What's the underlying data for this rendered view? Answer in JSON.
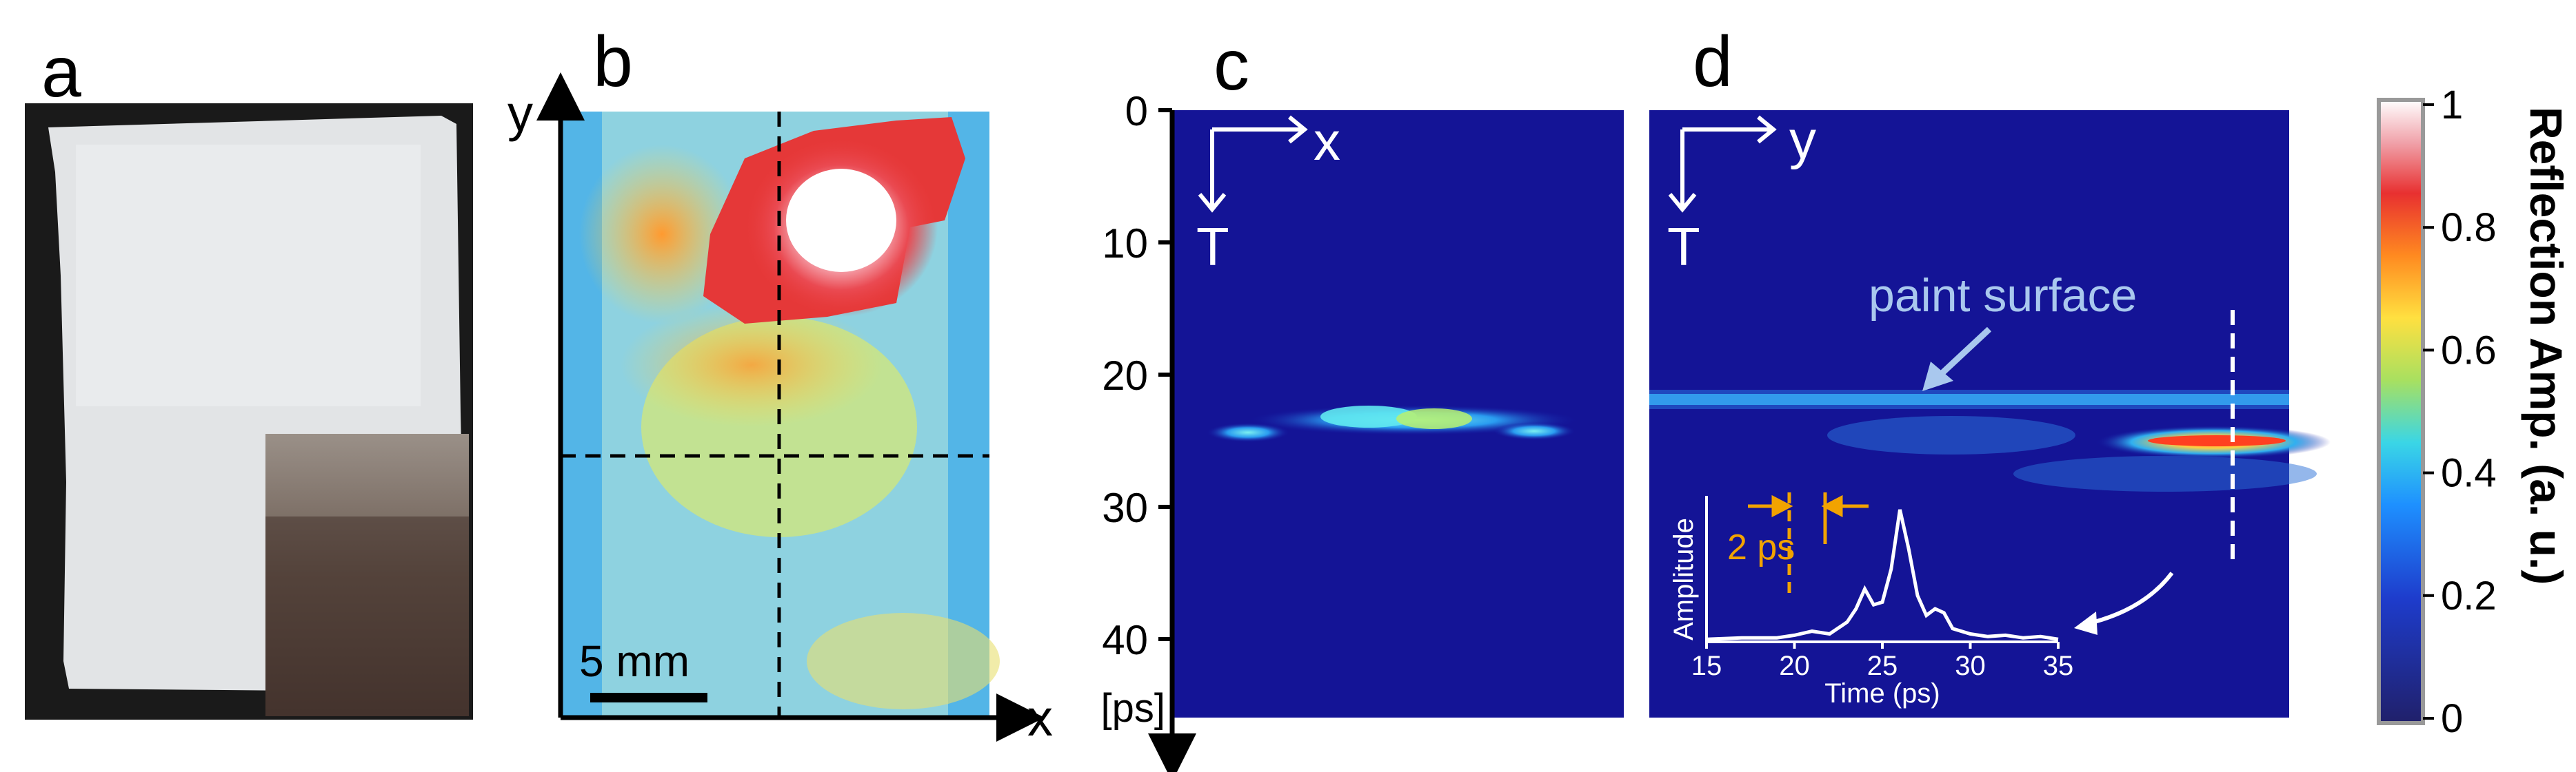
{
  "panels": {
    "a": {
      "label": "a"
    },
    "b": {
      "label": "b",
      "axis_x": "x",
      "axis_y": "y",
      "scale_bar": "5 mm"
    },
    "c": {
      "label": "c",
      "axis_x": "x",
      "axis_t": "T"
    },
    "d": {
      "label": "d",
      "axis_y": "y",
      "axis_t": "T",
      "annotation": "paint surface"
    }
  },
  "time_axis": {
    "ticks": [
      "0",
      "10",
      "20",
      "30",
      "40"
    ],
    "unit": "[ps]"
  },
  "inset": {
    "ylabel": "Amplitude",
    "xlabel": "Time (ps)",
    "xticks": [
      "15",
      "20",
      "25",
      "30",
      "35"
    ],
    "annotation": "2 ps"
  },
  "colorbar": {
    "label": "Reflection Amp. (a. u.)",
    "ticks": [
      "1",
      "0.8",
      "0.6",
      "0.4",
      "0.2",
      "0"
    ]
  },
  "chart_data": {
    "type": "line",
    "title": "",
    "xlabel": "Time (ps)",
    "ylabel": "Amplitude",
    "xlim": [
      15,
      35
    ],
    "series": [
      {
        "x": [
          15,
          17,
          19,
          20,
          21,
          22,
          23,
          23.5,
          24,
          24.5,
          25,
          25.5,
          26,
          26.5,
          27,
          27.5,
          28,
          28.5,
          29,
          30,
          31,
          32,
          33,
          34,
          35
        ],
        "y": [
          0.02,
          0.03,
          0.03,
          0.05,
          0.08,
          0.06,
          0.15,
          0.25,
          0.4,
          0.28,
          0.3,
          0.55,
          1.0,
          0.7,
          0.35,
          0.2,
          0.25,
          0.22,
          0.1,
          0.06,
          0.04,
          0.05,
          0.03,
          0.04,
          0.02
        ]
      }
    ]
  },
  "colors": {
    "heatmap_low": "#1c1c8c",
    "heatmap_high": "#ffffff",
    "annotation_orange": "#f2a300",
    "annotation_light_blue": "#a9c8ee"
  }
}
